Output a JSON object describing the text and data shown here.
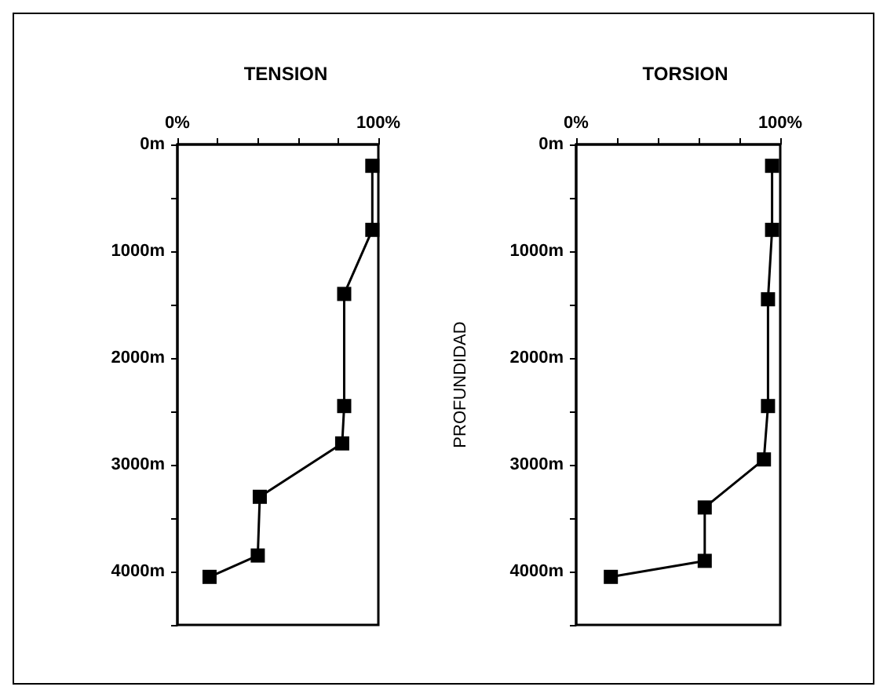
{
  "chart_data": [
    {
      "type": "line",
      "title": "TENSION",
      "x": [
        97,
        97,
        83,
        83,
        82,
        41,
        40,
        16
      ],
      "values": [
        200,
        800,
        1400,
        2450,
        2800,
        3300,
        3850,
        4050
      ],
      "color": "#000000",
      "marker": "square",
      "line_style": "solid",
      "grid": false,
      "xlim": [
        0,
        100
      ],
      "xticks": [
        {
          "value": 0,
          "label": "0%"
        },
        {
          "value": 20,
          "label": null
        },
        {
          "value": 40,
          "label": null
        },
        {
          "value": 60,
          "label": null
        },
        {
          "value": 80,
          "label": null
        },
        {
          "value": 100,
          "label": "100%"
        }
      ],
      "ylim": [
        4500,
        0
      ],
      "yticks": [
        {
          "value": 0,
          "label": "0m"
        },
        {
          "value": 500,
          "label": null
        },
        {
          "value": 1000,
          "label": "1000m"
        },
        {
          "value": 1500,
          "label": null
        },
        {
          "value": 2000,
          "label": "2000m"
        },
        {
          "value": 2500,
          "label": null
        },
        {
          "value": 3000,
          "label": "3000m"
        },
        {
          "value": 3500,
          "label": null
        },
        {
          "value": 4000,
          "label": "4000m"
        },
        {
          "value": 4500,
          "label": null
        }
      ]
    },
    {
      "type": "line",
      "title": "TORSION",
      "ylabel": "PROFUNDIDAD",
      "x": [
        96,
        96,
        94,
        94,
        92,
        63,
        63,
        17
      ],
      "values": [
        200,
        800,
        1450,
        2450,
        2950,
        3400,
        3900,
        4050
      ],
      "color": "#000000",
      "marker": "square",
      "line_style": "solid",
      "grid": false,
      "xlim": [
        0,
        100
      ],
      "xticks": [
        {
          "value": 0,
          "label": "0%"
        },
        {
          "value": 20,
          "label": null
        },
        {
          "value": 40,
          "label": null
        },
        {
          "value": 60,
          "label": null
        },
        {
          "value": 80,
          "label": null
        },
        {
          "value": 100,
          "label": "100%"
        }
      ],
      "ylim": [
        4500,
        0
      ],
      "yticks": [
        {
          "value": 0,
          "label": "0m"
        },
        {
          "value": 500,
          "label": null
        },
        {
          "value": 1000,
          "label": "1000m"
        },
        {
          "value": 1500,
          "label": null
        },
        {
          "value": 2000,
          "label": "2000m"
        },
        {
          "value": 2500,
          "label": null
        },
        {
          "value": 3000,
          "label": "3000m"
        },
        {
          "value": 3500,
          "label": null
        },
        {
          "value": 4000,
          "label": "4000m"
        },
        {
          "value": 4500,
          "label": null
        }
      ]
    }
  ]
}
